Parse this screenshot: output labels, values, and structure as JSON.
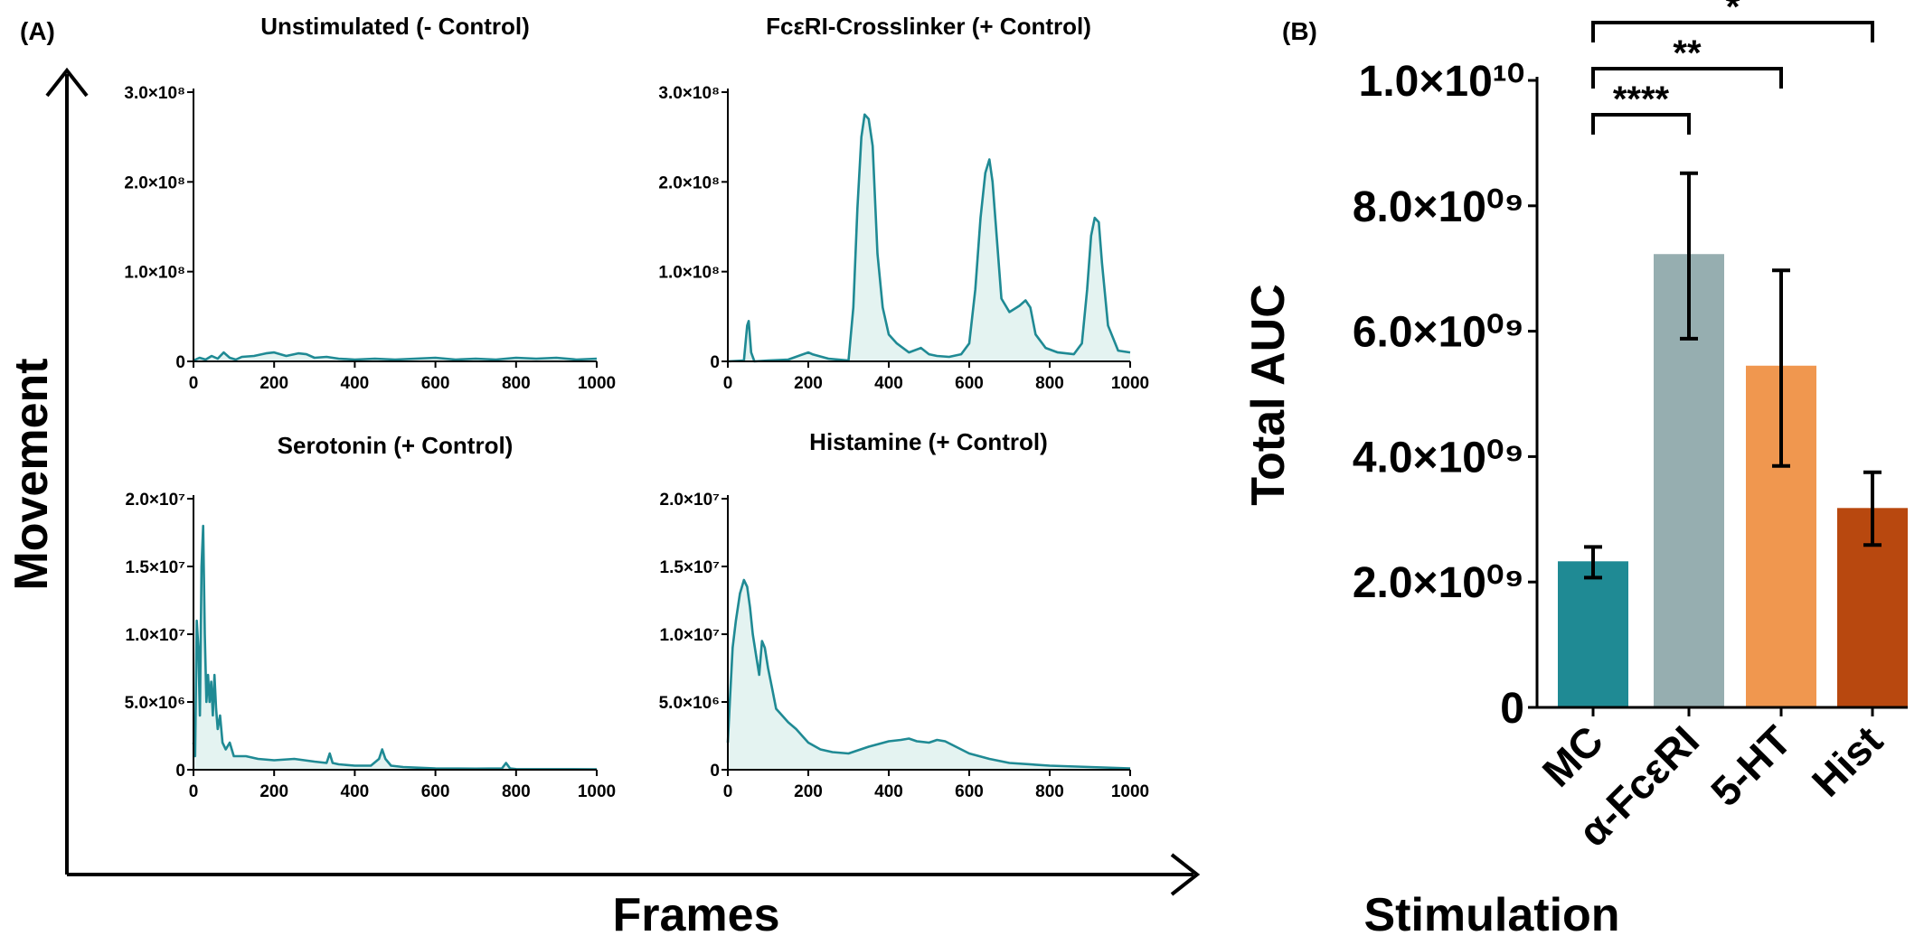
{
  "panel_a_label": "(A)",
  "panel_b_label": "(B)",
  "chart_data": [
    {
      "type": "area",
      "title": "Unstimulated (- Control)",
      "xlabel": "Frames",
      "ylabel": "Movement",
      "xlim": [
        0,
        1000
      ],
      "ylim": [
        0,
        300000000
      ],
      "xticks": [
        "0",
        "200",
        "400",
        "600",
        "800",
        "1000"
      ],
      "yticks": [
        "0",
        "1.0×10⁸",
        "2.0×10⁸",
        "3.0×10⁸"
      ],
      "color": "#1f8a94",
      "x": [
        0,
        15,
        30,
        45,
        60,
        75,
        90,
        105,
        120,
        150,
        180,
        200,
        230,
        260,
        280,
        300,
        330,
        360,
        400,
        450,
        500,
        550,
        600,
        650,
        700,
        750,
        800,
        850,
        900,
        950,
        1000
      ],
      "y": [
        1000000,
        4000000,
        2000000,
        6000000,
        3000000,
        10000000,
        4000000,
        2000000,
        5000000,
        6000000,
        9000000,
        10000000,
        6000000,
        9000000,
        8000000,
        4000000,
        5000000,
        3000000,
        2000000,
        3000000,
        2000000,
        3000000,
        4000000,
        2000000,
        3000000,
        2000000,
        4000000,
        3000000,
        4000000,
        2000000,
        3000000
      ]
    },
    {
      "type": "area",
      "title": "FcεRI-Crosslinker (+ Control)",
      "xlabel": "Frames",
      "ylabel": "Movement",
      "xlim": [
        0,
        1000
      ],
      "ylim": [
        0,
        300000000
      ],
      "xticks": [
        "0",
        "200",
        "400",
        "600",
        "800",
        "1000"
      ],
      "yticks": [
        "0",
        "1.0×10⁸",
        "2.0×10⁸",
        "3.0×10⁸"
      ],
      "color": "#1f8a94",
      "x": [
        0,
        40,
        48,
        52,
        58,
        66,
        100,
        150,
        200,
        210,
        250,
        300,
        312,
        322,
        332,
        340,
        350,
        360,
        372,
        385,
        400,
        420,
        450,
        480,
        500,
        520,
        550,
        580,
        600,
        615,
        628,
        640,
        650,
        658,
        668,
        680,
        700,
        725,
        740,
        752,
        765,
        790,
        820,
        860,
        880,
        893,
        903,
        912,
        922,
        930,
        945,
        970,
        1000
      ],
      "y": [
        0,
        1000000,
        40000000,
        45000000,
        10000000,
        0,
        1000000,
        2000000,
        10000000,
        8000000,
        3000000,
        1000000,
        60000000,
        170000000,
        250000000,
        275000000,
        270000000,
        240000000,
        120000000,
        60000000,
        30000000,
        20000000,
        10000000,
        15000000,
        8000000,
        6000000,
        5000000,
        8000000,
        20000000,
        80000000,
        160000000,
        210000000,
        225000000,
        200000000,
        140000000,
        70000000,
        55000000,
        62000000,
        68000000,
        60000000,
        30000000,
        15000000,
        10000000,
        8000000,
        20000000,
        80000000,
        140000000,
        160000000,
        155000000,
        110000000,
        40000000,
        12000000,
        10000000
      ]
    },
    {
      "type": "area",
      "title": "Serotonin (+ Control)",
      "xlabel": "Frames",
      "ylabel": "Movement",
      "xlim": [
        0,
        1000
      ],
      "ylim": [
        0,
        20000000
      ],
      "xticks": [
        "0",
        "200",
        "400",
        "600",
        "800",
        "1000"
      ],
      "yticks": [
        "0",
        "5.0×10⁶",
        "1.0×10⁷",
        "1.5×10⁷",
        "2.0×10⁷"
      ],
      "color": "#1f8a94",
      "x": [
        0,
        4,
        8,
        12,
        16,
        20,
        24,
        28,
        32,
        36,
        40,
        44,
        48,
        52,
        56,
        60,
        66,
        72,
        80,
        90,
        100,
        130,
        160,
        200,
        250,
        300,
        330,
        338,
        345,
        360,
        400,
        440,
        460,
        468,
        476,
        490,
        520,
        560,
        600,
        700,
        765,
        775,
        785,
        800,
        900,
        1000
      ],
      "y": [
        2000000,
        1000000,
        11000000,
        9000000,
        4000000,
        15000000,
        18000000,
        10000000,
        5000000,
        7000000,
        5000000,
        6500000,
        4000000,
        7000000,
        4500000,
        3000000,
        4000000,
        2000000,
        1500000,
        2000000,
        1000000,
        1000000,
        800000,
        700000,
        800000,
        600000,
        500000,
        1200000,
        500000,
        400000,
        300000,
        300000,
        800000,
        1500000,
        800000,
        300000,
        200000,
        150000,
        100000,
        80000,
        100000,
        500000,
        100000,
        50000,
        40000,
        30000
      ]
    },
    {
      "type": "area",
      "title": "Histamine (+ Control)",
      "xlabel": "Frames",
      "ylabel": "Movement",
      "xlim": [
        0,
        1000
      ],
      "ylim": [
        0,
        20000000
      ],
      "xticks": [
        "0",
        "200",
        "400",
        "600",
        "800",
        "1000"
      ],
      "yticks": [
        "0",
        "5.0×10⁶",
        "1.0×10⁷",
        "1.5×10⁷",
        "2.0×10⁷"
      ],
      "color": "#1f8a94",
      "x": [
        0,
        5,
        12,
        20,
        30,
        40,
        48,
        55,
        62,
        70,
        78,
        85,
        92,
        100,
        110,
        120,
        135,
        150,
        170,
        200,
        230,
        260,
        300,
        350,
        400,
        430,
        450,
        470,
        500,
        520,
        540,
        560,
        600,
        650,
        700,
        800,
        900,
        1000
      ],
      "y": [
        2000000,
        5000000,
        9000000,
        11000000,
        13000000,
        14000000,
        13500000,
        12000000,
        10000000,
        8500000,
        7000000,
        9500000,
        9000000,
        7500000,
        6000000,
        4500000,
        4000000,
        3500000,
        3000000,
        2000000,
        1500000,
        1300000,
        1200000,
        1700000,
        2100000,
        2200000,
        2300000,
        2100000,
        2000000,
        2200000,
        2100000,
        1800000,
        1200000,
        800000,
        500000,
        300000,
        200000,
        100000
      ]
    },
    {
      "type": "bar",
      "xlabel": "Stimulation",
      "ylabel": "Total AUC",
      "ylim": [
        0,
        10000000000
      ],
      "yticks": [
        "0",
        "2.0×10⁰⁹",
        "4.0×10⁰⁹",
        "6.0×10⁰⁹",
        "8.0×10⁰⁹",
        "1.0×10¹⁰"
      ],
      "categories": [
        "MC",
        "α-FcεRI",
        "5-HT",
        "Hist"
      ],
      "values": [
        2330000000,
        7230000000,
        5450000000,
        3180000000
      ],
      "error_low": [
        2070000000,
        5880000000,
        3850000000,
        2590000000
      ],
      "error_high": [
        2560000000,
        8520000000,
        6970000000,
        3750000000
      ],
      "colors": [
        "#1f8a94",
        "#96aeb0",
        "#f0974f",
        "#b8480f"
      ],
      "significance": [
        {
          "from": "MC",
          "to": "α-FcεRI",
          "label": "****"
        },
        {
          "from": "MC",
          "to": "5-HT",
          "label": "**"
        },
        {
          "from": "MC",
          "to": "Hist",
          "label": "*"
        }
      ]
    }
  ]
}
